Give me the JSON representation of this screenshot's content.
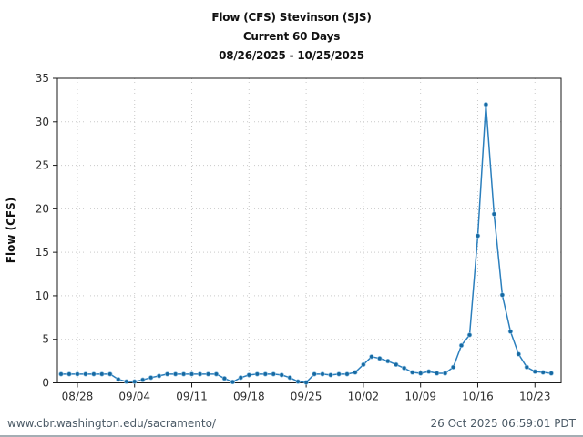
{
  "header": {
    "title_line1": "Flow (CFS) Stevinson (SJS)",
    "title_line2": "Current 60 Days",
    "title_line3": "08/26/2025 - 10/25/2025"
  },
  "footer": {
    "url": "www.cbr.washington.edu/sacramento/",
    "timestamp": "26 Oct 2025 06:59:01 PDT"
  },
  "chart_data": {
    "type": "line",
    "title": "Flow (CFS) Stevinson (SJS)",
    "subtitle": "Current 60 Days",
    "date_range": "08/26/2025 - 10/25/2025",
    "xlabel": "",
    "ylabel": "Flow (CFS)",
    "ylim": [
      0,
      35
    ],
    "yticks": [
      0,
      5,
      10,
      15,
      20,
      25,
      30,
      35
    ],
    "xtick_labels": [
      "08/28",
      "09/04",
      "09/11",
      "09/18",
      "09/25",
      "10/02",
      "10/09",
      "10/16",
      "10/23"
    ],
    "xtick_day_indices": [
      2,
      9,
      16,
      23,
      30,
      37,
      44,
      51,
      58
    ],
    "grid": "dotted",
    "legend": "none",
    "line_color": "#2b7fbd",
    "marker_color": "#1669a2",
    "marker_edge_color": "#8fc1e3",
    "grid_color": "#c9c9c9",
    "frame_color": "#1a1a1a",
    "dates": [
      "08/26",
      "08/27",
      "08/28",
      "08/29",
      "08/30",
      "08/31",
      "09/01",
      "09/02",
      "09/03",
      "09/04",
      "09/05",
      "09/06",
      "09/07",
      "09/08",
      "09/09",
      "09/10",
      "09/11",
      "09/12",
      "09/13",
      "09/14",
      "09/15",
      "09/16",
      "09/17",
      "09/18",
      "09/19",
      "09/20",
      "09/21",
      "09/22",
      "09/23",
      "09/24",
      "09/25",
      "09/26",
      "09/27",
      "09/28",
      "09/29",
      "09/30",
      "10/01",
      "10/02",
      "10/03",
      "10/04",
      "10/05",
      "10/06",
      "10/07",
      "10/08",
      "10/09",
      "10/10",
      "10/11",
      "10/12",
      "10/13",
      "10/14",
      "10/15",
      "10/16",
      "10/17",
      "10/18",
      "10/19",
      "10/20",
      "10/21",
      "10/22",
      "10/23",
      "10/24",
      "10/25"
    ],
    "values": [
      1.0,
      1.0,
      1.0,
      1.0,
      1.0,
      1.0,
      1.0,
      0.4,
      0.15,
      0.15,
      0.35,
      0.6,
      0.8,
      1.0,
      1.0,
      1.0,
      1.0,
      1.0,
      1.0,
      1.0,
      0.5,
      0.1,
      0.6,
      0.9,
      1.0,
      1.0,
      1.0,
      0.9,
      0.6,
      0.15,
      0.05,
      1.0,
      1.0,
      0.9,
      1.0,
      1.0,
      1.2,
      2.1,
      3.0,
      2.8,
      2.5,
      2.1,
      1.7,
      1.2,
      1.1,
      1.3,
      1.1,
      1.1,
      1.8,
      4.3,
      5.5,
      16.9,
      32.0,
      19.4,
      10.1,
      5.9,
      3.3,
      1.8,
      1.3,
      1.2,
      1.1
    ]
  }
}
